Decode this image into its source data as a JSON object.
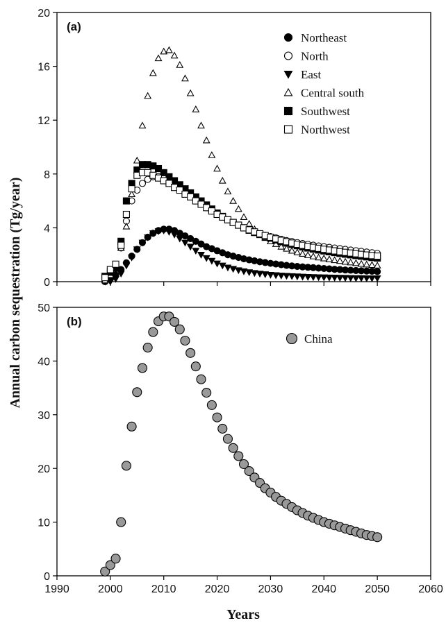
{
  "figure": {
    "ylabel": "Annual carbon sequestration (Tg/year)",
    "xlabel": "Years"
  },
  "chart_data": [
    {
      "type": "scatter",
      "panel_label": "(a)",
      "xlim": [
        1990,
        2060
      ],
      "ylim": [
        0,
        20
      ],
      "yticks": [
        0,
        4,
        8,
        12,
        16,
        20
      ],
      "legend_position": "top-right",
      "series": [
        {
          "name": "Northeast",
          "marker": "circle-filled",
          "x": [
            1999,
            2000,
            2001,
            2002,
            2003,
            2004,
            2005,
            2006,
            2007,
            2008,
            2009,
            2010,
            2011,
            2012,
            2013,
            2014,
            2015,
            2016,
            2017,
            2018,
            2019,
            2020,
            2021,
            2022,
            2023,
            2024,
            2025,
            2026,
            2027,
            2028,
            2029,
            2030,
            2031,
            2032,
            2033,
            2034,
            2035,
            2036,
            2037,
            2038,
            2039,
            2040,
            2041,
            2042,
            2043,
            2044,
            2045,
            2046,
            2047,
            2048,
            2049,
            2050
          ],
          "y": [
            0.0,
            0.2,
            0.5,
            0.9,
            1.4,
            1.9,
            2.4,
            2.9,
            3.3,
            3.6,
            3.8,
            3.9,
            3.9,
            3.8,
            3.6,
            3.4,
            3.2,
            3.0,
            2.8,
            2.6,
            2.45,
            2.3,
            2.15,
            2.0,
            1.9,
            1.8,
            1.7,
            1.62,
            1.55,
            1.48,
            1.42,
            1.36,
            1.31,
            1.26,
            1.21,
            1.17,
            1.13,
            1.1,
            1.07,
            1.04,
            1.01,
            0.98,
            0.95,
            0.92,
            0.9,
            0.87,
            0.85,
            0.83,
            0.81,
            0.79,
            0.77,
            0.75
          ]
        },
        {
          "name": "North",
          "marker": "circle-open",
          "x": [
            1999,
            2000,
            2001,
            2002,
            2003,
            2004,
            2005,
            2006,
            2007,
            2008,
            2009,
            2010,
            2011,
            2012,
            2013,
            2014,
            2015,
            2016,
            2017,
            2018,
            2019,
            2020,
            2021,
            2022,
            2023,
            2024,
            2025,
            2026,
            2027,
            2028,
            2029,
            2030,
            2031,
            2032,
            2033,
            2034,
            2035,
            2036,
            2037,
            2038,
            2039,
            2040,
            2041,
            2042,
            2043,
            2044,
            2045,
            2046,
            2047,
            2048,
            2049,
            2050
          ],
          "y": [
            0.2,
            0.5,
            1.0,
            2.5,
            4.5,
            6.0,
            6.8,
            7.3,
            7.6,
            7.8,
            7.8,
            7.7,
            7.5,
            7.3,
            7.0,
            6.7,
            6.4,
            6.1,
            5.8,
            5.5,
            5.25,
            5.0,
            4.8,
            4.6,
            4.4,
            4.2,
            4.0,
            3.85,
            3.7,
            3.55,
            3.45,
            3.35,
            3.25,
            3.15,
            3.05,
            2.98,
            2.9,
            2.83,
            2.77,
            2.71,
            2.65,
            2.6,
            2.55,
            2.5,
            2.45,
            2.4,
            2.35,
            2.3,
            2.25,
            2.2,
            2.15,
            2.1
          ]
        },
        {
          "name": "East",
          "marker": "triangle-down-filled",
          "x": [
            1999,
            2000,
            2001,
            2002,
            2003,
            2004,
            2005,
            2006,
            2007,
            2008,
            2009,
            2010,
            2011,
            2012,
            2013,
            2014,
            2015,
            2016,
            2017,
            2018,
            2019,
            2020,
            2021,
            2022,
            2023,
            2024,
            2025,
            2026,
            2027,
            2028,
            2029,
            2030,
            2031,
            2032,
            2033,
            2034,
            2035,
            2036,
            2037,
            2038,
            2039,
            2040,
            2041,
            2042,
            2043,
            2044,
            2045,
            2046,
            2047,
            2048,
            2049,
            2050
          ],
          "y": [
            0.0,
            0.0,
            0.2,
            0.6,
            1.2,
            1.8,
            2.4,
            2.9,
            3.3,
            3.6,
            3.75,
            3.8,
            3.7,
            3.5,
            3.2,
            2.9,
            2.6,
            2.3,
            2.0,
            1.75,
            1.55,
            1.35,
            1.2,
            1.05,
            0.95,
            0.85,
            0.77,
            0.7,
            0.64,
            0.59,
            0.55,
            0.51,
            0.48,
            0.45,
            0.43,
            0.41,
            0.39,
            0.37,
            0.35,
            0.34,
            0.33,
            0.32,
            0.31,
            0.3,
            0.29,
            0.28,
            0.27,
            0.26,
            0.26,
            0.25,
            0.25,
            0.25
          ]
        },
        {
          "name": "Central south",
          "marker": "triangle-up-open",
          "x": [
            1999,
            2000,
            2001,
            2002,
            2003,
            2004,
            2005,
            2006,
            2007,
            2008,
            2009,
            2010,
            2011,
            2012,
            2013,
            2014,
            2015,
            2016,
            2017,
            2018,
            2019,
            2020,
            2021,
            2022,
            2023,
            2024,
            2025,
            2026,
            2027,
            2028,
            2029,
            2030,
            2031,
            2032,
            2033,
            2034,
            2035,
            2036,
            2037,
            2038,
            2039,
            2040,
            2041,
            2042,
            2043,
            2044,
            2045,
            2046,
            2047,
            2048,
            2049,
            2050
          ],
          "y": [
            0.1,
            0.5,
            1.2,
            2.5,
            4.1,
            6.5,
            9.0,
            11.6,
            13.8,
            15.5,
            16.6,
            17.1,
            17.2,
            16.8,
            16.1,
            15.1,
            14.0,
            12.8,
            11.6,
            10.5,
            9.4,
            8.4,
            7.5,
            6.7,
            6.0,
            5.4,
            4.8,
            4.3,
            3.9,
            3.55,
            3.25,
            3.0,
            2.8,
            2.6,
            2.45,
            2.3,
            2.18,
            2.07,
            1.97,
            1.88,
            1.8,
            1.73,
            1.66,
            1.6,
            1.54,
            1.48,
            1.43,
            1.38,
            1.33,
            1.28,
            1.24,
            1.2
          ]
        },
        {
          "name": "Southwest",
          "marker": "square-filled",
          "x": [
            1999,
            2000,
            2001,
            2002,
            2003,
            2004,
            2005,
            2006,
            2007,
            2008,
            2009,
            2010,
            2011,
            2012,
            2013,
            2014,
            2015,
            2016,
            2017,
            2018,
            2019,
            2020,
            2021,
            2022,
            2023,
            2024,
            2025,
            2026,
            2027,
            2028,
            2029,
            2030,
            2031,
            2032,
            2033,
            2034,
            2035,
            2036,
            2037,
            2038,
            2039,
            2040,
            2041,
            2042,
            2043,
            2044,
            2045,
            2046,
            2047,
            2048,
            2049,
            2050
          ],
          "y": [
            0.4,
            0.7,
            1.0,
            3.0,
            6.0,
            7.3,
            8.3,
            8.7,
            8.7,
            8.6,
            8.4,
            8.1,
            7.8,
            7.5,
            7.2,
            6.9,
            6.6,
            6.3,
            6.0,
            5.7,
            5.4,
            5.1,
            4.85,
            4.6,
            4.4,
            4.2,
            4.0,
            3.82,
            3.65,
            3.5,
            3.36,
            3.23,
            3.1,
            2.98,
            2.87,
            2.77,
            2.67,
            2.58,
            2.5,
            2.42,
            2.35,
            2.28,
            2.22,
            2.16,
            2.1,
            2.04,
            1.99,
            1.94,
            1.89,
            1.84,
            1.79,
            1.75
          ]
        },
        {
          "name": "Northwest",
          "marker": "square-open",
          "x": [
            1999,
            2000,
            2001,
            2002,
            2003,
            2004,
            2005,
            2006,
            2007,
            2008,
            2009,
            2010,
            2011,
            2012,
            2013,
            2014,
            2015,
            2016,
            2017,
            2018,
            2019,
            2020,
            2021,
            2022,
            2023,
            2024,
            2025,
            2026,
            2027,
            2028,
            2029,
            2030,
            2031,
            2032,
            2033,
            2034,
            2035,
            2036,
            2037,
            2038,
            2039,
            2040,
            2041,
            2042,
            2043,
            2044,
            2045,
            2046,
            2047,
            2048,
            2049,
            2050
          ],
          "y": [
            0.3,
            0.9,
            1.3,
            2.7,
            5.0,
            6.9,
            7.9,
            8.1,
            8.1,
            7.9,
            7.7,
            7.5,
            7.3,
            7.0,
            6.8,
            6.5,
            6.3,
            6.0,
            5.75,
            5.5,
            5.25,
            5.0,
            4.8,
            4.6,
            4.4,
            4.2,
            4.0,
            3.85,
            3.7,
            3.56,
            3.43,
            3.3,
            3.18,
            3.07,
            2.97,
            2.87,
            2.78,
            2.7,
            2.62,
            2.55,
            2.48,
            2.41,
            2.35,
            2.29,
            2.23,
            2.18,
            2.13,
            2.08,
            2.03,
            1.98,
            1.94,
            1.9
          ]
        }
      ]
    },
    {
      "type": "scatter",
      "panel_label": "(b)",
      "xlim": [
        1990,
        2060
      ],
      "ylim": [
        0,
        50
      ],
      "yticks": [
        0,
        10,
        20,
        30,
        40,
        50
      ],
      "xticks": [
        1990,
        2000,
        2010,
        2020,
        2030,
        2040,
        2050,
        2060
      ],
      "legend_position": "top-right",
      "series": [
        {
          "name": "China",
          "marker": "circle-grey",
          "color": "#999999",
          "x": [
            1999,
            2000,
            2001,
            2002,
            2003,
            2004,
            2005,
            2006,
            2007,
            2008,
            2009,
            2010,
            2011,
            2012,
            2013,
            2014,
            2015,
            2016,
            2017,
            2018,
            2019,
            2020,
            2021,
            2022,
            2023,
            2024,
            2025,
            2026,
            2027,
            2028,
            2029,
            2030,
            2031,
            2032,
            2033,
            2034,
            2035,
            2036,
            2037,
            2038,
            2039,
            2040,
            2041,
            2042,
            2043,
            2044,
            2045,
            2046,
            2047,
            2048,
            2049,
            2050
          ],
          "y": [
            0.8,
            2.0,
            3.2,
            10.0,
            20.5,
            27.8,
            34.2,
            38.7,
            42.5,
            45.4,
            47.4,
            48.3,
            48.3,
            47.3,
            45.9,
            43.8,
            41.5,
            39.0,
            36.6,
            34.1,
            31.8,
            29.5,
            27.4,
            25.5,
            23.8,
            22.3,
            20.8,
            19.5,
            18.3,
            17.3,
            16.3,
            15.5,
            14.7,
            14.0,
            13.4,
            12.8,
            12.2,
            11.7,
            11.2,
            10.8,
            10.4,
            10.0,
            9.7,
            9.4,
            9.1,
            8.8,
            8.5,
            8.2,
            7.9,
            7.6,
            7.4,
            7.2
          ]
        }
      ]
    }
  ]
}
